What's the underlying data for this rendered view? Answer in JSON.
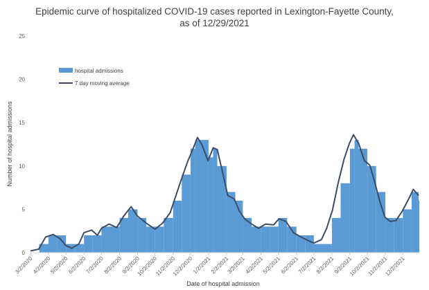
{
  "chart_data": {
    "type": "bar",
    "title_line1": "Epidemic curve of hospitalized COVID-19 cases reported in Lexington-Fayette County,",
    "title_line2": "as of 12/29/2021",
    "xlabel": "Date of hospital admission",
    "ylabel": "Number of hospital admissions",
    "ylim": [
      0,
      25
    ],
    "yticks": [
      0,
      5,
      10,
      15,
      20,
      25
    ],
    "x_start": "2020-03-02",
    "x_end": "2021-12-29",
    "xtick_labels": [
      "3/2/2020",
      "4/2/2020",
      "5/2/2020",
      "6/2/2020",
      "7/2/2020",
      "8/2/2020",
      "9/2/2020",
      "10/2/2020",
      "11/2/2020",
      "12/2/2020",
      "1/2/2021",
      "2/2/2021",
      "3/2/2021",
      "4/2/2021",
      "5/2/2021",
      "6/2/2021",
      "7/2/2021",
      "8/2/2021",
      "9/2/2021",
      "10/2/2021",
      "11/2/2021",
      "12/2/2021"
    ],
    "grid": false,
    "legend": {
      "placement": "upper-left",
      "entries": [
        "hospital admissions",
        "7 day moving average"
      ]
    },
    "series": [
      {
        "name": "hospital admissions",
        "kind": "bar",
        "color": "#5b9bd5",
        "points": [
          [
            "3/2/2020",
            0
          ],
          [
            "3/17/2020",
            1
          ],
          [
            "4/2/2020",
            2
          ],
          [
            "4/17/2020",
            2
          ],
          [
            "5/2/2020",
            1
          ],
          [
            "5/17/2020",
            1
          ],
          [
            "6/2/2020",
            2
          ],
          [
            "6/17/2020",
            2
          ],
          [
            "7/2/2020",
            3
          ],
          [
            "7/17/2020",
            3
          ],
          [
            "8/2/2020",
            4
          ],
          [
            "8/17/2020",
            5
          ],
          [
            "9/2/2020",
            4
          ],
          [
            "9/17/2020",
            3
          ],
          [
            "10/2/2020",
            3
          ],
          [
            "10/17/2020",
            4
          ],
          [
            "11/2/2020",
            6
          ],
          [
            "11/17/2020",
            9
          ],
          [
            "12/2/2020",
            12
          ],
          [
            "12/10/2020",
            13
          ],
          [
            "12/17/2020",
            13
          ],
          [
            "1/2/2021",
            11
          ],
          [
            "1/10/2021",
            12
          ],
          [
            "1/17/2021",
            10
          ],
          [
            "2/2/2021",
            7
          ],
          [
            "2/17/2021",
            6
          ],
          [
            "3/2/2021",
            4
          ],
          [
            "3/17/2021",
            3
          ],
          [
            "4/2/2021",
            3
          ],
          [
            "4/17/2021",
            3
          ],
          [
            "5/2/2021",
            4
          ],
          [
            "5/17/2021",
            3
          ],
          [
            "6/2/2021",
            2
          ],
          [
            "6/17/2021",
            2
          ],
          [
            "7/2/2021",
            1
          ],
          [
            "7/17/2021",
            1
          ],
          [
            "8/2/2021",
            4
          ],
          [
            "8/17/2021",
            8
          ],
          [
            "9/2/2021",
            12
          ],
          [
            "9/10/2021",
            13
          ],
          [
            "9/17/2021",
            12
          ],
          [
            "10/2/2021",
            10
          ],
          [
            "10/17/2021",
            7
          ],
          [
            "11/2/2021",
            4
          ],
          [
            "11/17/2021",
            4
          ],
          [
            "12/2/2021",
            5
          ],
          [
            "12/17/2021",
            7
          ],
          [
            "12/29/2021",
            6
          ]
        ]
      },
      {
        "name": "7 day moving average",
        "kind": "line",
        "color": "#3d4c66",
        "points": [
          [
            "3/2/2020",
            0.2
          ],
          [
            "3/16/2020",
            0.4
          ],
          [
            "3/28/2020",
            1.8
          ],
          [
            "4/10/2020",
            2.1
          ],
          [
            "4/22/2020",
            1.6
          ],
          [
            "5/2/2020",
            0.8
          ],
          [
            "5/12/2020",
            0.5
          ],
          [
            "5/24/2020",
            1.0
          ],
          [
            "6/2/2020",
            2.3
          ],
          [
            "6/15/2020",
            2.6
          ],
          [
            "6/25/2020",
            2.0
          ],
          [
            "7/2/2020",
            2.8
          ],
          [
            "7/15/2020",
            3.3
          ],
          [
            "7/28/2020",
            2.9
          ],
          [
            "8/10/2020",
            4.3
          ],
          [
            "8/22/2020",
            5.3
          ],
          [
            "9/2/2020",
            4.2
          ],
          [
            "9/17/2020",
            3.4
          ],
          [
            "10/2/2020",
            2.7
          ],
          [
            "10/15/2020",
            3.4
          ],
          [
            "10/28/2020",
            4.6
          ],
          [
            "11/5/2020",
            6.2
          ],
          [
            "11/15/2020",
            8.2
          ],
          [
            "11/27/2020",
            10.5
          ],
          [
            "12/7/2020",
            12.1
          ],
          [
            "12/14/2020",
            13.3
          ],
          [
            "12/22/2020",
            12.4
          ],
          [
            "1/1/2021",
            10.6
          ],
          [
            "1/10/2021",
            12.1
          ],
          [
            "1/17/2021",
            11.9
          ],
          [
            "1/26/2021",
            9.3
          ],
          [
            "2/4/2021",
            6.6
          ],
          [
            "2/15/2021",
            6.2
          ],
          [
            "2/24/2021",
            4.8
          ],
          [
            "3/5/2021",
            3.9
          ],
          [
            "3/17/2021",
            3.3
          ],
          [
            "3/29/2021",
            2.8
          ],
          [
            "4/10/2021",
            3.3
          ],
          [
            "4/24/2021",
            3.2
          ],
          [
            "5/3/2021",
            3.9
          ],
          [
            "5/15/2021",
            3.6
          ],
          [
            "5/28/2021",
            2.3
          ],
          [
            "6/10/2021",
            1.8
          ],
          [
            "6/22/2021",
            1.4
          ],
          [
            "7/2/2021",
            1.1
          ],
          [
            "7/15/2021",
            1.5
          ],
          [
            "7/24/2021",
            2.8
          ],
          [
            "8/3/2021",
            4.9
          ],
          [
            "8/13/2021",
            8.1
          ],
          [
            "8/23/2021",
            10.8
          ],
          [
            "9/1/2021",
            12.6
          ],
          [
            "9/8/2021",
            13.6
          ],
          [
            "9/17/2021",
            12.6
          ],
          [
            "9/27/2021",
            10.6
          ],
          [
            "10/6/2021",
            10.1
          ],
          [
            "10/14/2021",
            8.3
          ],
          [
            "10/23/2021",
            6.0
          ],
          [
            "11/1/2021",
            4.1
          ],
          [
            "11/10/2021",
            3.6
          ],
          [
            "11/20/2021",
            3.7
          ],
          [
            "12/1/2021",
            4.8
          ],
          [
            "12/12/2021",
            6.2
          ],
          [
            "12/20/2021",
            7.3
          ],
          [
            "12/29/2021",
            6.6
          ]
        ]
      }
    ]
  }
}
